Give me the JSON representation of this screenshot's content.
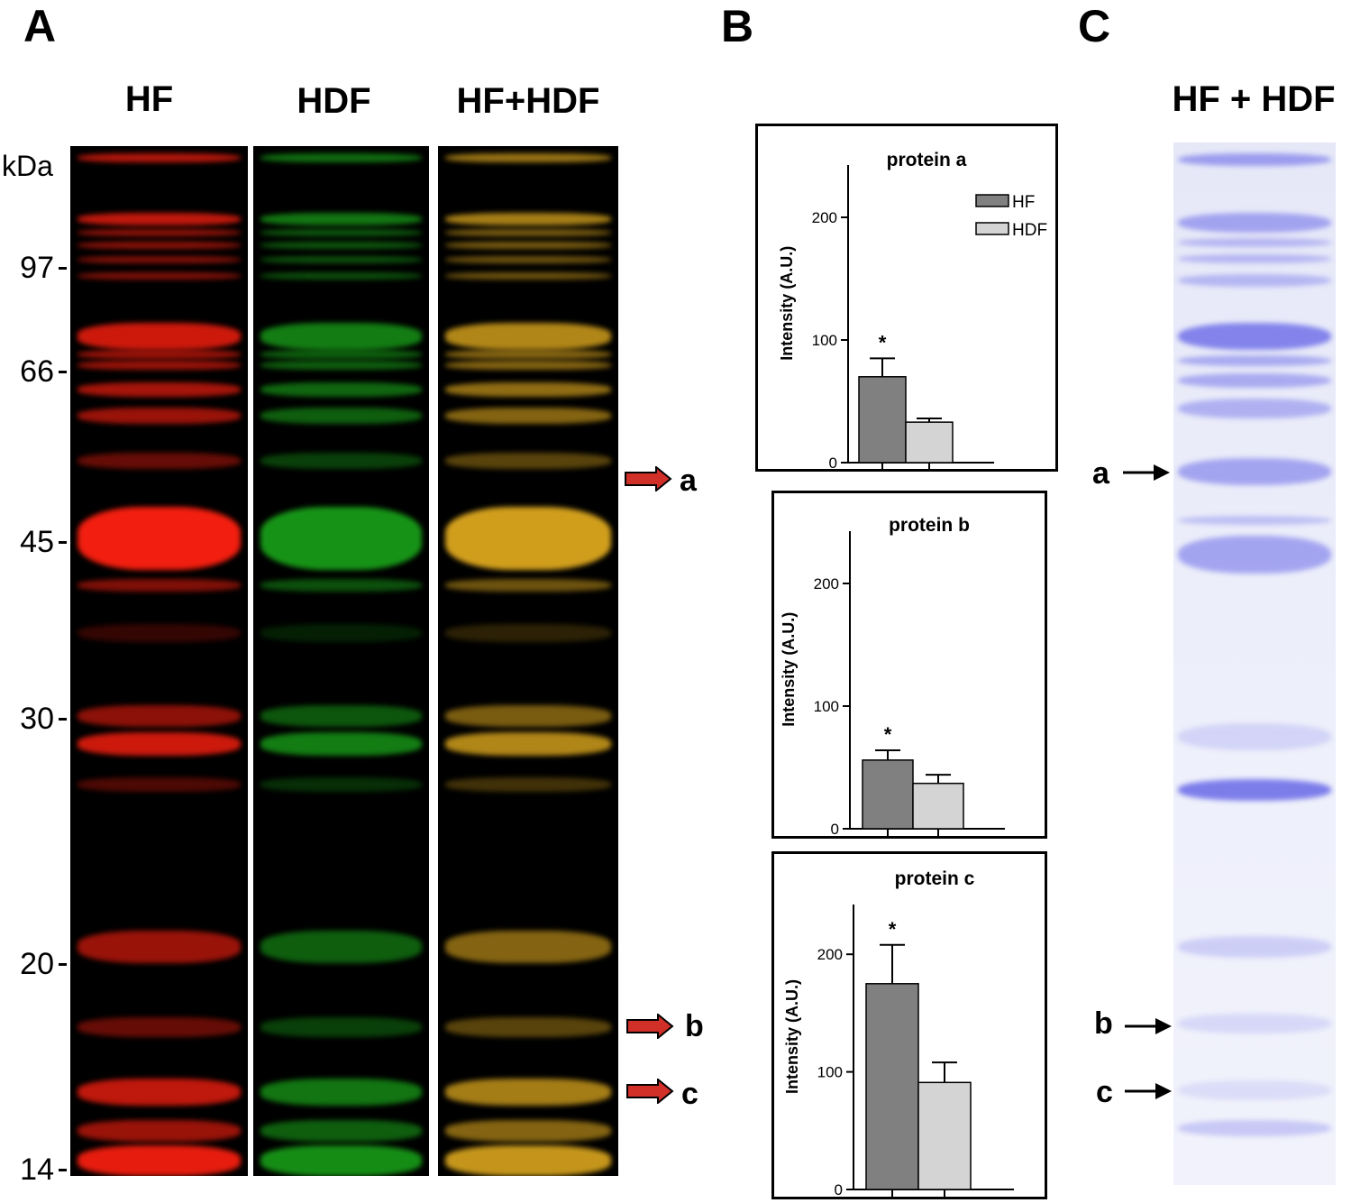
{
  "panels": {
    "a_label": "A",
    "b_label": "B",
    "c_label": "C"
  },
  "gel": {
    "lanes": [
      {
        "title": "HF",
        "color": "#ff2010"
      },
      {
        "title": "HDF",
        "color": "#20d020"
      },
      {
        "title": "HF+HDF",
        "color": "#e8b020"
      }
    ],
    "unit": "kDa",
    "markers": [
      "97",
      "66",
      "45",
      "30",
      "20",
      "14"
    ],
    "arrow_color": "#d03028",
    "arrows": [
      "a",
      "b",
      "c"
    ]
  },
  "stain": {
    "title": "HF + HDF",
    "color": "#6a6ae8",
    "arrows": [
      "a",
      "b",
      "c"
    ]
  },
  "chart_data": [
    {
      "type": "bar",
      "title": "protein a",
      "ylabel": "Intensity (A.U.)",
      "ylim": [
        0,
        250
      ],
      "yticks": [
        "0",
        "100",
        "200"
      ],
      "legend": {
        "position": "top-right",
        "entries": [
          "HF",
          "HDF"
        ]
      },
      "series": [
        {
          "name": "HF",
          "value": 70,
          "error": 15,
          "color": "#808080",
          "annotation": "*"
        },
        {
          "name": "HDF",
          "value": 33,
          "error": 3,
          "color": "#d4d4d4",
          "annotation": ""
        }
      ]
    },
    {
      "type": "bar",
      "title": "protein b",
      "ylabel": "Intensity (A.U.)",
      "ylim": [
        0,
        250
      ],
      "yticks": [
        "0",
        "100",
        "200"
      ],
      "series": [
        {
          "name": "HF",
          "value": 56,
          "error": 8,
          "color": "#808080",
          "annotation": "*"
        },
        {
          "name": "HDF",
          "value": 37,
          "error": 7,
          "color": "#d4d4d4",
          "annotation": ""
        }
      ]
    },
    {
      "type": "bar",
      "title": "protein c",
      "ylabel": "Intensity (A.U.)",
      "ylim": [
        0,
        250
      ],
      "yticks": [
        "0",
        "100",
        "200"
      ],
      "series": [
        {
          "name": "HF",
          "value": 175,
          "error": 33,
          "color": "#808080",
          "annotation": "*"
        },
        {
          "name": "HDF",
          "value": 91,
          "error": 17,
          "color": "#d4d4d4",
          "annotation": ""
        }
      ]
    }
  ]
}
